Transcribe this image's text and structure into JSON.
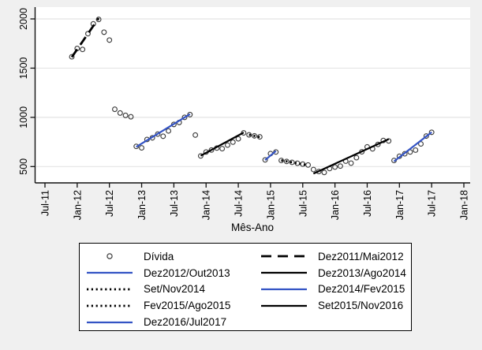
{
  "figure": {
    "background": "#f0f0f0",
    "plot_background": "#ffffff",
    "grid_color": "#e4e4e4",
    "axis_color": "#111111",
    "accent_blue": "#3353c4",
    "marker_color": "#3c3c3c"
  },
  "chart_data": {
    "type": "scatter",
    "title": "",
    "xlabel": "Mês-Ano",
    "ylabel": "",
    "grid": "horizontal",
    "legend_position": "bottom-center",
    "x_axis": {
      "start_month": "Jul-2011",
      "months_total": 78,
      "tick_every_months": 6,
      "tick_labels": [
        "Jul-11",
        "Jan-12",
        "Jul-12",
        "Jan-13",
        "Jul-13",
        "Jan-14",
        "Jul-14",
        "Jan-15",
        "Jul-15",
        "Jan-16",
        "Jul-16",
        "Jan-17",
        "Jul-17",
        "Jan-18"
      ]
    },
    "y_axis": {
      "ticks": [
        500,
        1000,
        1500,
        2000
      ],
      "range_shown": [
        330,
        2115
      ]
    },
    "series": {
      "name": "Dívida",
      "marker": "hollow-circle",
      "first_point_month_index": 5,
      "first_point_month": "Dez-2011",
      "values": [
        1615,
        1700,
        1690,
        1850,
        1950,
        1995,
        1865,
        1785,
        1082,
        1044,
        1020,
        1006,
        705,
        690,
        775,
        792,
        830,
        808,
        862,
        928,
        948,
        1000,
        1028,
        820,
        608,
        648,
        668,
        688,
        682,
        718,
        748,
        782,
        842,
        822,
        812,
        802,
        568,
        632,
        648,
        562,
        552,
        543,
        534,
        525,
        516,
        470,
        450,
        440,
        480,
        495,
        505,
        555,
        535,
        590,
        650,
        700,
        680,
        725,
        765,
        760,
        562,
        605,
        630,
        648,
        667,
        730,
        810,
        848
      ]
    },
    "segments": [
      {
        "label": "Dez2011/Mai2012",
        "from_m": 5,
        "from_v": 1612,
        "to_m": 10,
        "to_v": 2008,
        "color": "black",
        "dash": "dash"
      },
      {
        "label": "Dez2012/Out2013",
        "from_m": 17,
        "from_v": 700,
        "to_m": 27,
        "to_v": 1032,
        "color": "blue",
        "dash": "solid"
      },
      {
        "label": "Dez2013/Ago2014",
        "from_m": 29,
        "from_v": 610,
        "to_m": 37,
        "to_v": 846,
        "color": "black",
        "dash": "solid"
      },
      {
        "label": "Set/Nov2014",
        "from_m": 38,
        "from_v": 824,
        "to_m": 40,
        "to_v": 799,
        "color": "black",
        "dash": "dot"
      },
      {
        "label": "Dez2014/Fev2015",
        "from_m": 41,
        "from_v": 566,
        "to_m": 43,
        "to_v": 658,
        "color": "blue",
        "dash": "solid"
      },
      {
        "label": "Fev2015/Ago2015",
        "from_m": 44,
        "from_v": 563,
        "to_m": 49,
        "to_v": 513,
        "color": "black",
        "dash": "dot"
      },
      {
        "label": "Set2015/Nov2016",
        "from_m": 50,
        "from_v": 428,
        "to_m": 64,
        "to_v": 779,
        "color": "black",
        "dash": "solid"
      },
      {
        "label": "Dez2016/Jul2017",
        "from_m": 65,
        "from_v": 553,
        "to_m": 72,
        "to_v": 849,
        "color": "blue",
        "dash": "solid"
      }
    ]
  },
  "legend": {
    "items": [
      {
        "label": "Dívida",
        "swatch": "circle"
      },
      {
        "label": "Dez2011/Mai2012",
        "swatch": "dash-black"
      },
      {
        "label": "Dez2012/Out2013",
        "swatch": "solid-blue"
      },
      {
        "label": "Dez2013/Ago2014",
        "swatch": "solid-black"
      },
      {
        "label": "Set/Nov2014",
        "swatch": "dot-black"
      },
      {
        "label": "Dez2014/Fev2015",
        "swatch": "solid-blue"
      },
      {
        "label": "Fev2015/Ago2015",
        "swatch": "dot-black"
      },
      {
        "label": "Set2015/Nov2016",
        "swatch": "solid-black"
      },
      {
        "label": "Dez2016/Jul2017",
        "swatch": "solid-blue"
      }
    ]
  }
}
